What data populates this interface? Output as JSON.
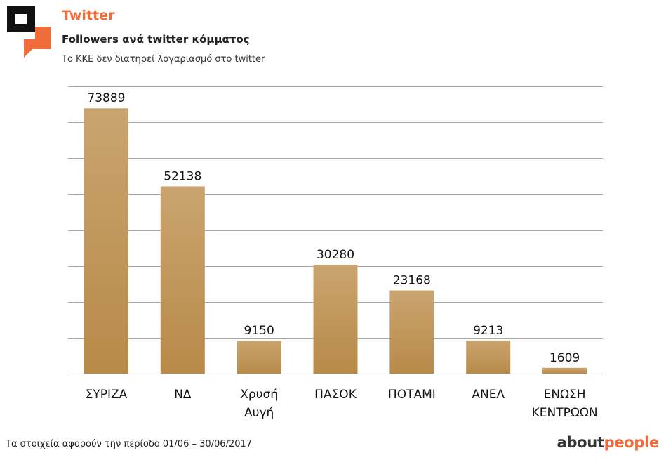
{
  "header": {
    "section": "Twitter",
    "title": "Followers ανά twitter κόμματος",
    "subtitle": "Το ΚΚΕ δεν διατηρεί λογαριασμό στο twitter"
  },
  "chart_data": {
    "type": "bar",
    "categories": [
      "ΣΥΡΙΖΑ",
      "ΝΔ",
      "Χρυσή Αυγή",
      "ΠΑΣΟΚ",
      "ΠΟΤΑΜΙ",
      "ΑΝΕΛ",
      "ΕΝΩΣΗ ΚΕΝΤΡΩΩΝ"
    ],
    "category_lines": [
      [
        "ΣΥΡΙΖΑ"
      ],
      [
        "ΝΔ"
      ],
      [
        "Χρυσή",
        "Αυγή"
      ],
      [
        "ΠΑΣΟΚ"
      ],
      [
        "ΠΟΤΑΜΙ"
      ],
      [
        "ΑΝΕΛ"
      ],
      [
        "ΕΝΩΣΗ",
        "ΚΕΝΤΡΩΩΝ"
      ]
    ],
    "values": [
      73889,
      52138,
      9150,
      30280,
      23168,
      9213,
      1609
    ],
    "ylim": [
      0,
      80000
    ],
    "grid": true,
    "bar_color": "#b78a48"
  },
  "footer": {
    "note": "Τα στοιχεία αφορούν την περίοδο 01/06 – 30/06/2017",
    "brand_part1": "about",
    "brand_part2": "people"
  },
  "colors": {
    "accent": "#f26b3a",
    "logo_dark": "#111111"
  }
}
